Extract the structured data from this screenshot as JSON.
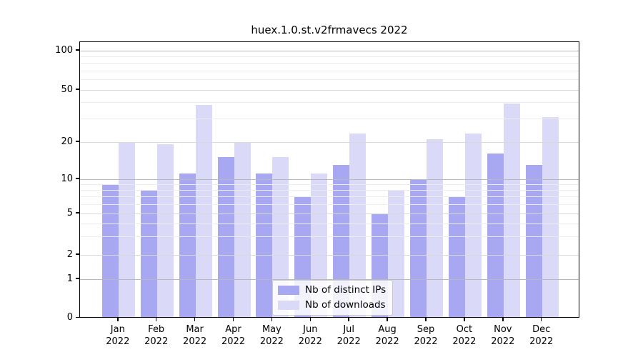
{
  "title": "huex.1.0.st.v2frmavecs 2022",
  "chart_data": {
    "type": "bar",
    "title": "huex.1.0.st.v2frmavecs 2022",
    "categories": [
      "Jan 2022",
      "Feb 2022",
      "Mar 2022",
      "Apr 2022",
      "May 2022",
      "Jun 2022",
      "Jul 2022",
      "Aug 2022",
      "Sep 2022",
      "Oct 2022",
      "Nov 2022",
      "Dec 2022"
    ],
    "months": [
      "Jan",
      "Feb",
      "Mar",
      "Apr",
      "May",
      "Jun",
      "Jul",
      "Aug",
      "Sep",
      "Oct",
      "Nov",
      "Dec"
    ],
    "year": "2022",
    "series": [
      {
        "name": "Nb of distinct IPs",
        "color": "#a8a8f2",
        "values": [
          9,
          8,
          11,
          15,
          11,
          7,
          13,
          5,
          10,
          7,
          16,
          13
        ]
      },
      {
        "name": "Nb of downloads",
        "color": "#dadaf8",
        "values": [
          20,
          19,
          38,
          20,
          15,
          11,
          23,
          8,
          21,
          23,
          39,
          31
        ]
      }
    ],
    "xlabel": "",
    "ylabel": "",
    "yticks": [
      0,
      1,
      2,
      5,
      10,
      20,
      50,
      100
    ],
    "ylim": [
      0,
      117
    ],
    "yscale": "symlog",
    "grid": true,
    "legend_position": "lower center"
  }
}
